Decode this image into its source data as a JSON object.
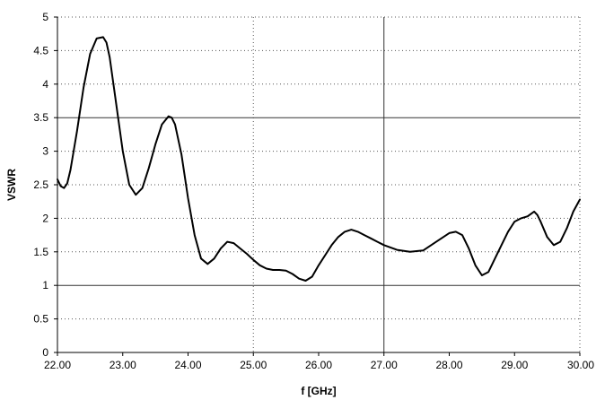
{
  "chart_data": {
    "type": "line",
    "title": "",
    "xlabel": "f [GHz]",
    "ylabel": "VSWR",
    "xlim": [
      22,
      30
    ],
    "ylim": [
      0,
      5
    ],
    "x_ticks": [
      22,
      23,
      24,
      25,
      26,
      27,
      28,
      29,
      30
    ],
    "x_tick_labels": [
      "22.00",
      "23.00",
      "24.00",
      "25.00",
      "26.00",
      "27.00",
      "28.00",
      "29.00",
      "30.00"
    ],
    "y_ticks": [
      0,
      0.5,
      1,
      1.5,
      2,
      2.5,
      3,
      3.5,
      4,
      4.5,
      5
    ],
    "y_tick_labels": [
      "0",
      "0.5",
      "1",
      "1.5",
      "2",
      "2.5",
      "3",
      "3.5",
      "4",
      "4.5",
      "5"
    ],
    "solid_grid_y": [
      1,
      3.5
    ],
    "solid_grid_x": [
      27
    ],
    "dotted_grid_y": [
      0.5,
      1.5,
      2,
      2.5,
      3,
      4,
      4.5,
      5
    ],
    "dotted_grid_x": [
      25,
      30
    ],
    "series": [
      {
        "color": "#000000",
        "x": [
          22.0,
          22.05,
          22.1,
          22.15,
          22.2,
          22.3,
          22.4,
          22.5,
          22.6,
          22.7,
          22.75,
          22.8,
          22.9,
          23.0,
          23.1,
          23.2,
          23.3,
          23.4,
          23.5,
          23.6,
          23.7,
          23.75,
          23.8,
          23.9,
          24.0,
          24.1,
          24.2,
          24.3,
          24.4,
          24.5,
          24.6,
          24.7,
          24.8,
          24.9,
          25.0,
          25.1,
          25.2,
          25.3,
          25.4,
          25.5,
          25.6,
          25.7,
          25.8,
          25.9,
          26.0,
          26.1,
          26.2,
          26.3,
          26.4,
          26.5,
          26.6,
          26.7,
          26.8,
          26.9,
          27.0,
          27.2,
          27.4,
          27.6,
          27.8,
          28.0,
          28.1,
          28.2,
          28.3,
          28.4,
          28.5,
          28.6,
          28.7,
          28.8,
          28.9,
          29.0,
          29.1,
          29.2,
          29.3,
          29.35,
          29.4,
          29.5,
          29.6,
          29.7,
          29.8,
          29.9,
          30.0
        ],
        "y": [
          2.58,
          2.48,
          2.45,
          2.52,
          2.72,
          3.3,
          3.95,
          4.45,
          4.68,
          4.7,
          4.62,
          4.4,
          3.7,
          3.0,
          2.5,
          2.35,
          2.45,
          2.75,
          3.1,
          3.4,
          3.52,
          3.5,
          3.4,
          2.95,
          2.3,
          1.75,
          1.4,
          1.32,
          1.4,
          1.55,
          1.65,
          1.63,
          1.55,
          1.47,
          1.38,
          1.3,
          1.25,
          1.23,
          1.23,
          1.22,
          1.17,
          1.1,
          1.07,
          1.13,
          1.3,
          1.45,
          1.6,
          1.72,
          1.8,
          1.83,
          1.8,
          1.75,
          1.7,
          1.65,
          1.6,
          1.53,
          1.5,
          1.52,
          1.65,
          1.78,
          1.8,
          1.75,
          1.55,
          1.3,
          1.15,
          1.2,
          1.4,
          1.6,
          1.8,
          1.95,
          2.0,
          2.03,
          2.1,
          2.05,
          1.95,
          1.72,
          1.6,
          1.65,
          1.85,
          2.1,
          2.28
        ]
      }
    ]
  }
}
